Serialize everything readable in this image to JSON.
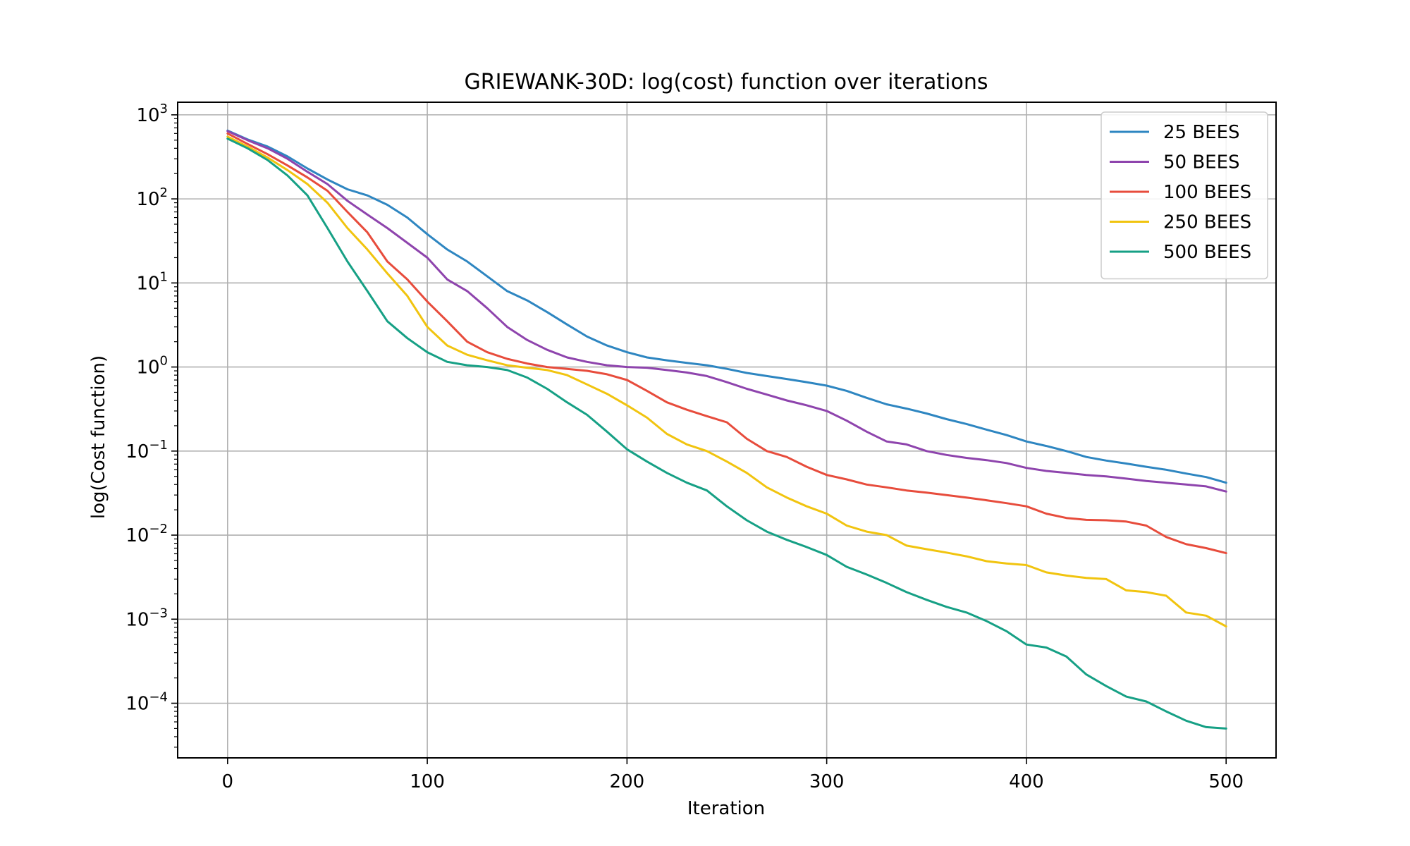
{
  "chart_data": {
    "type": "line",
    "title": "GRIEWANK-30D: log(cost) function over iterations",
    "xlabel": "Iteration",
    "ylabel": "log(Cost function)",
    "xlim": [
      -25,
      525
    ],
    "ylim_log10": [
      -4.65,
      3.15
    ],
    "yscale": "log",
    "grid": true,
    "legend_position": "top-right",
    "x_ticks": [
      0,
      100,
      200,
      300,
      400,
      500
    ],
    "x_tick_labels": [
      "0",
      "100",
      "200",
      "300",
      "400",
      "500"
    ],
    "y_ticks": [
      {
        "value": 1000,
        "base": "10",
        "exp": "3"
      },
      {
        "value": 100,
        "base": "10",
        "exp": "2"
      },
      {
        "value": 10,
        "base": "10",
        "exp": "1"
      },
      {
        "value": 1,
        "base": "10",
        "exp": "0"
      },
      {
        "value": 0.1,
        "base": "10",
        "exp": "−1"
      },
      {
        "value": 0.01,
        "base": "10",
        "exp": "−2"
      },
      {
        "value": 0.001,
        "base": "10",
        "exp": "−3"
      },
      {
        "value": 0.0001,
        "base": "10",
        "exp": "−4"
      }
    ],
    "series": [
      {
        "name": "25 BEES",
        "color": "#2e86c1",
        "x": [
          0,
          10,
          20,
          30,
          40,
          50,
          60,
          70,
          80,
          90,
          100,
          110,
          120,
          130,
          140,
          150,
          160,
          170,
          180,
          190,
          200,
          210,
          220,
          230,
          240,
          250,
          260,
          270,
          280,
          290,
          300,
          310,
          320,
          330,
          340,
          350,
          360,
          370,
          380,
          390,
          400,
          410,
          420,
          430,
          440,
          450,
          460,
          470,
          480,
          490,
          500
        ],
        "y": [
          650,
          510,
          420,
          320,
          230,
          170,
          130,
          110,
          85,
          60,
          38,
          25,
          18,
          12,
          8,
          6.2,
          4.5,
          3.2,
          2.3,
          1.8,
          1.5,
          1.3,
          1.2,
          1.12,
          1.05,
          0.95,
          0.85,
          0.78,
          0.72,
          0.66,
          0.6,
          0.52,
          0.43,
          0.36,
          0.32,
          0.28,
          0.24,
          0.21,
          0.18,
          0.155,
          0.13,
          0.115,
          0.1,
          0.085,
          0.077,
          0.071,
          0.065,
          0.06,
          0.054,
          0.049,
          0.042
        ]
      },
      {
        "name": "50 BEES",
        "color": "#8e44ad",
        "x": [
          0,
          10,
          20,
          30,
          40,
          50,
          60,
          70,
          80,
          90,
          100,
          110,
          120,
          130,
          140,
          150,
          160,
          170,
          180,
          190,
          200,
          210,
          220,
          230,
          240,
          250,
          260,
          270,
          280,
          290,
          300,
          310,
          320,
          330,
          340,
          350,
          360,
          370,
          380,
          390,
          400,
          410,
          420,
          430,
          440,
          450,
          460,
          470,
          480,
          490,
          500
        ],
        "y": [
          640,
          500,
          400,
          300,
          210,
          150,
          95,
          65,
          45,
          30,
          20,
          11,
          8,
          5,
          3,
          2.1,
          1.6,
          1.3,
          1.15,
          1.05,
          1.0,
          0.98,
          0.92,
          0.86,
          0.78,
          0.66,
          0.55,
          0.47,
          0.4,
          0.35,
          0.3,
          0.23,
          0.17,
          0.13,
          0.12,
          0.1,
          0.09,
          0.083,
          0.078,
          0.072,
          0.063,
          0.058,
          0.055,
          0.052,
          0.05,
          0.047,
          0.044,
          0.042,
          0.04,
          0.038,
          0.033
        ]
      },
      {
        "name": "100 BEES",
        "color": "#e74c3c",
        "x": [
          0,
          10,
          20,
          30,
          40,
          50,
          60,
          70,
          80,
          90,
          100,
          110,
          120,
          130,
          140,
          150,
          160,
          170,
          180,
          190,
          200,
          210,
          220,
          230,
          240,
          250,
          260,
          270,
          280,
          290,
          300,
          310,
          320,
          330,
          340,
          350,
          360,
          370,
          380,
          390,
          400,
          410,
          420,
          430,
          440,
          450,
          460,
          470,
          480,
          490,
          500
        ],
        "y": [
          600,
          450,
          340,
          250,
          180,
          125,
          70,
          40,
          18,
          11,
          6,
          3.5,
          2.0,
          1.5,
          1.25,
          1.1,
          1.0,
          0.95,
          0.9,
          0.82,
          0.7,
          0.52,
          0.38,
          0.31,
          0.26,
          0.22,
          0.14,
          0.1,
          0.085,
          0.065,
          0.052,
          0.046,
          0.04,
          0.037,
          0.034,
          0.032,
          0.03,
          0.028,
          0.026,
          0.024,
          0.022,
          0.018,
          0.016,
          0.0152,
          0.015,
          0.0145,
          0.013,
          0.0095,
          0.0078,
          0.007,
          0.0061
        ]
      },
      {
        "name": "250 BEES",
        "color": "#f1c40f",
        "x": [
          0,
          10,
          20,
          30,
          40,
          50,
          60,
          70,
          80,
          90,
          100,
          110,
          120,
          130,
          140,
          150,
          160,
          170,
          180,
          190,
          200,
          210,
          220,
          230,
          240,
          250,
          260,
          270,
          280,
          290,
          300,
          310,
          320,
          330,
          340,
          350,
          360,
          370,
          380,
          390,
          400,
          410,
          420,
          430,
          440,
          450,
          460,
          470,
          480,
          490,
          500
        ],
        "y": [
          550,
          420,
          310,
          220,
          150,
          90,
          45,
          25,
          13,
          7,
          3,
          1.8,
          1.4,
          1.2,
          1.05,
          0.98,
          0.92,
          0.8,
          0.62,
          0.48,
          0.35,
          0.25,
          0.16,
          0.12,
          0.1,
          0.075,
          0.055,
          0.037,
          0.028,
          0.022,
          0.018,
          0.013,
          0.011,
          0.01,
          0.0075,
          0.0068,
          0.0062,
          0.0056,
          0.0049,
          0.0046,
          0.0044,
          0.0036,
          0.0033,
          0.0031,
          0.003,
          0.0022,
          0.0021,
          0.0019,
          0.0012,
          0.0011,
          0.00082
        ]
      },
      {
        "name": "500 BEES",
        "color": "#16a085",
        "x": [
          0,
          10,
          20,
          30,
          40,
          50,
          60,
          70,
          80,
          90,
          100,
          110,
          120,
          130,
          140,
          150,
          160,
          170,
          180,
          190,
          200,
          210,
          220,
          230,
          240,
          250,
          260,
          270,
          280,
          290,
          300,
          310,
          320,
          330,
          340,
          350,
          360,
          370,
          380,
          390,
          400,
          410,
          420,
          430,
          440,
          450,
          460,
          470,
          480,
          490,
          500
        ],
        "y": [
          520,
          400,
          290,
          190,
          110,
          45,
          18,
          8,
          3.5,
          2.2,
          1.5,
          1.15,
          1.05,
          1.0,
          0.92,
          0.75,
          0.55,
          0.38,
          0.27,
          0.17,
          0.105,
          0.075,
          0.055,
          0.042,
          0.034,
          0.022,
          0.015,
          0.011,
          0.0088,
          0.0072,
          0.0058,
          0.0042,
          0.0034,
          0.0027,
          0.0021,
          0.0017,
          0.0014,
          0.0012,
          0.00095,
          0.00072,
          0.0005,
          0.00046,
          0.00036,
          0.00022,
          0.00016,
          0.00012,
          0.000105,
          8e-05,
          6.2e-05,
          5.2e-05,
          5e-05
        ]
      }
    ]
  }
}
